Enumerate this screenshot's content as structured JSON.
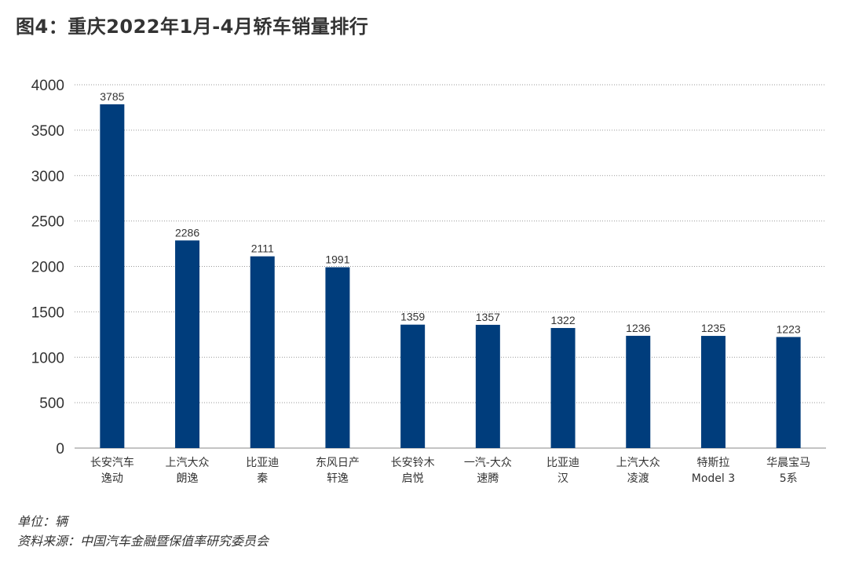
{
  "title": "图4：重庆2022年1月-4月轿车销量排行",
  "footer": {
    "unit": "单位：辆",
    "source": "资料来源：中国汽车金融暨保值率研究委员会"
  },
  "colors": {
    "bar": "#003d7c"
  },
  "chart_data": {
    "type": "bar",
    "categories": [
      [
        "长安汽车",
        "逸动"
      ],
      [
        "上汽大众",
        "朗逸"
      ],
      [
        "比亚迪",
        "秦"
      ],
      [
        "东风日产",
        "轩逸"
      ],
      [
        "长安铃木",
        "启悦"
      ],
      [
        "一汽-大众",
        "速腾"
      ],
      [
        "比亚迪",
        "汉"
      ],
      [
        "上汽大众",
        "凌渡"
      ],
      [
        "特斯拉",
        "Model 3"
      ],
      [
        "华晨宝马",
        "5系"
      ]
    ],
    "values": [
      3785,
      2286,
      2111,
      1991,
      1359,
      1357,
      1322,
      1236,
      1235,
      1223
    ],
    "ylim": [
      0,
      4000
    ],
    "yticks": [
      0,
      500,
      1000,
      1500,
      2000,
      2500,
      3000,
      3500,
      4000
    ],
    "grid": true,
    "legend": "none"
  }
}
